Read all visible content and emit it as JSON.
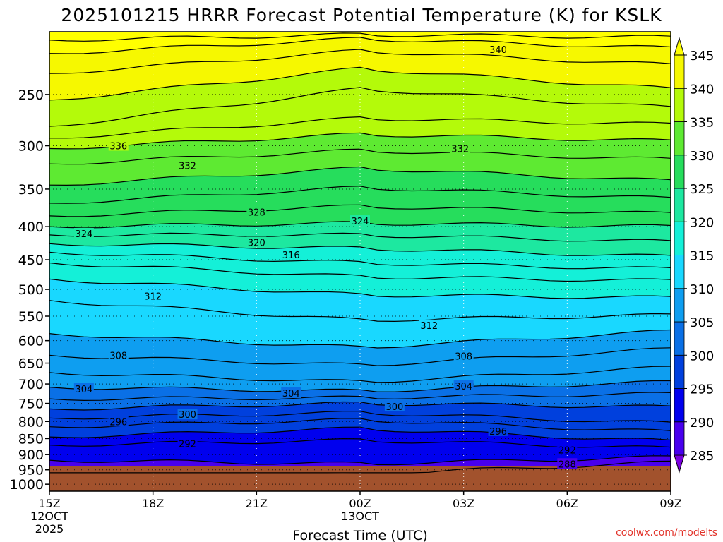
{
  "chart_data": {
    "type": "heatmap",
    "title": "2025101215 HRRR Forecast Potential Temperature (K) for KSLK",
    "xlabel": "Forecast Time (UTC)",
    "ylabel": "",
    "credit": "coolwx.com/modelts",
    "x_ticks": [
      "15Z",
      "18Z",
      "21Z",
      "00Z",
      "03Z",
      "06Z",
      "09Z"
    ],
    "x_tick_hours": [
      0,
      3,
      6,
      9,
      12,
      15,
      18
    ],
    "x_sub_labels": [
      {
        "hour": 0,
        "lines": [
          "12OCT",
          "2025"
        ]
      },
      {
        "hour": 9,
        "lines": [
          "13OCT"
        ]
      }
    ],
    "xlim": [
      0,
      18
    ],
    "y_ticks": [
      250,
      300,
      350,
      400,
      450,
      500,
      550,
      600,
      650,
      700,
      750,
      800,
      850,
      900,
      950,
      1000
    ],
    "ylim": [
      200,
      1025
    ],
    "y_scale": "log, inverted (pressure hPa)",
    "surface_pressure": 960,
    "grid": true,
    "colorbar": {
      "levels": [
        285,
        290,
        295,
        300,
        305,
        310,
        315,
        320,
        325,
        330,
        335,
        340,
        345
      ],
      "tick_labels": [
        "285",
        "290",
        "295",
        "300",
        "305",
        "310",
        "315",
        "320",
        "325",
        "330",
        "335",
        "340",
        "345"
      ],
      "colors": [
        "#7a00e0",
        "#4800ee",
        "#0000ee",
        "#0040dd",
        "#0a70e6",
        "#0e9ef0",
        "#19d8ff",
        "#14f0d8",
        "#1de8a0",
        "#26dd5c",
        "#5eea32",
        "#b4fa0a",
        "#f6f800",
        "#ffff00"
      ]
    },
    "contour_labels": [
      {
        "value": "336",
        "hour": 2.0,
        "p": 300
      },
      {
        "value": "332",
        "hour": 4.0,
        "p": 322
      },
      {
        "value": "332",
        "hour": 11.9,
        "p": 303
      },
      {
        "value": "340",
        "hour": 13.0,
        "p": 213
      },
      {
        "value": "328",
        "hour": 6.0,
        "p": 380
      },
      {
        "value": "324",
        "hour": 1.0,
        "p": 410
      },
      {
        "value": "324",
        "hour": 9.0,
        "p": 392
      },
      {
        "value": "320",
        "hour": 6.0,
        "p": 423
      },
      {
        "value": "316",
        "hour": 7.0,
        "p": 442
      },
      {
        "value": "312",
        "hour": 3.0,
        "p": 512
      },
      {
        "value": "312",
        "hour": 11.0,
        "p": 568
      },
      {
        "value": "308",
        "hour": 2.0,
        "p": 632
      },
      {
        "value": "308",
        "hour": 12.0,
        "p": 634
      },
      {
        "value": "304",
        "hour": 1.0,
        "p": 712
      },
      {
        "value": "304",
        "hour": 7.0,
        "p": 723
      },
      {
        "value": "304",
        "hour": 12.0,
        "p": 705
      },
      {
        "value": "300",
        "hour": 10.0,
        "p": 758
      },
      {
        "value": "300",
        "hour": 4.0,
        "p": 780
      },
      {
        "value": "296",
        "hour": 2.0,
        "p": 800
      },
      {
        "value": "296",
        "hour": 13.0,
        "p": 828
      },
      {
        "value": "292",
        "hour": 4.0,
        "p": 865
      },
      {
        "value": "292",
        "hour": 15.0,
        "p": 885
      },
      {
        "value": "288",
        "hour": 15.0,
        "p": 930
      }
    ],
    "series": [
      {
        "name": "288",
        "x": [
          0,
          9,
          18
        ],
        "y": [
          980,
          965,
          925
        ]
      },
      {
        "name": "290",
        "x": [
          0,
          9,
          18
        ],
        "y": [
          918,
          930,
          908
        ]
      },
      {
        "name": "292",
        "x": [
          0,
          9,
          18
        ],
        "y": [
          870,
          855,
          880
        ]
      },
      {
        "name": "294",
        "x": [
          0,
          9,
          18
        ],
        "y": [
          845,
          820,
          858
        ]
      },
      {
        "name": "296",
        "x": [
          0,
          9,
          18
        ],
        "y": [
          815,
          795,
          830
        ]
      },
      {
        "name": "298",
        "x": [
          0,
          9,
          18
        ],
        "y": [
          790,
          775,
          805
        ]
      },
      {
        "name": "300",
        "x": [
          0,
          9,
          18
        ],
        "y": [
          765,
          750,
          760
        ]
      },
      {
        "name": "302",
        "x": [
          0,
          9,
          18
        ],
        "y": [
          738,
          735,
          725
        ]
      },
      {
        "name": "304",
        "x": [
          0,
          9,
          18
        ],
        "y": [
          708,
          718,
          695
        ]
      },
      {
        "name": "306",
        "x": [
          0,
          9,
          18
        ],
        "y": [
          672,
          695,
          660
        ]
      },
      {
        "name": "308",
        "x": [
          0,
          9,
          18
        ],
        "y": [
          632,
          655,
          618
        ]
      },
      {
        "name": "310",
        "x": [
          0,
          9,
          18
        ],
        "y": [
          585,
          615,
          580
        ]
      },
      {
        "name": "312",
        "x": [
          0,
          9,
          18
        ],
        "y": [
          520,
          558,
          548
        ]
      },
      {
        "name": "314",
        "x": [
          0,
          9,
          18
        ],
        "y": [
          482,
          510,
          515
        ]
      },
      {
        "name": "316",
        "x": [
          0,
          9,
          18
        ],
        "y": [
          455,
          478,
          485
        ]
      },
      {
        "name": "318",
        "x": [
          0,
          9,
          18
        ],
        "y": [
          438,
          455,
          465
        ]
      },
      {
        "name": "320",
        "x": [
          0,
          9,
          18
        ],
        "y": [
          425,
          432,
          445
        ]
      },
      {
        "name": "322",
        "x": [
          0,
          9,
          18
        ],
        "y": [
          412,
          412,
          422
        ]
      },
      {
        "name": "324",
        "x": [
          0,
          9,
          18
        ],
        "y": [
          400,
          395,
          400
        ]
      },
      {
        "name": "326",
        "x": [
          0,
          9,
          18
        ],
        "y": [
          385,
          372,
          382
        ]
      },
      {
        "name": "328",
        "x": [
          0,
          9,
          18
        ],
        "y": [
          368,
          348,
          362
        ]
      },
      {
        "name": "330",
        "x": [
          0,
          9,
          18
        ],
        "y": [
          345,
          325,
          340
        ]
      },
      {
        "name": "332",
        "x": [
          0,
          9,
          18
        ],
        "y": [
          320,
          305,
          315
        ]
      },
      {
        "name": "334",
        "x": [
          0,
          9,
          18
        ],
        "y": [
          303,
          288,
          295
        ]
      },
      {
        "name": "336",
        "x": [
          0,
          9,
          18
        ],
        "y": [
          292,
          272,
          278
        ]
      },
      {
        "name": "338",
        "x": [
          0,
          9,
          18
        ],
        "y": [
          280,
          245,
          262
        ]
      },
      {
        "name": "340",
        "x": [
          0,
          9,
          18
        ],
        "y": [
          255,
          228,
          245
        ]
      },
      {
        "name": "342",
        "x": [
          0,
          9,
          18
        ],
        "y": [
          232,
          214,
          225
        ]
      },
      {
        "name": "344",
        "x": [
          0,
          9,
          18
        ],
        "y": [
          216,
          205,
          212
        ]
      },
      {
        "name": "346",
        "x": [
          0,
          9,
          18
        ],
        "y": [
          206,
          202,
          204
        ]
      }
    ]
  }
}
